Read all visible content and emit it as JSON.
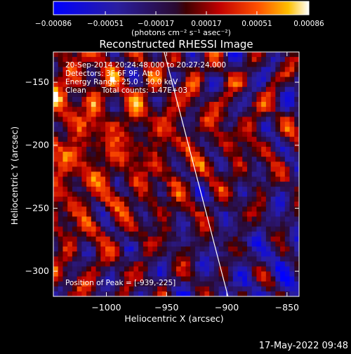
{
  "chart_data": {
    "type": "heatmap",
    "title": "Reconstructed RHESSI Image",
    "xlabel": "Heliocentric X (arcsec)",
    "ylabel": "Heliocentric Y (arcsec)",
    "xlim": [
      -1044,
      -840
    ],
    "ylim": [
      -320,
      -126
    ],
    "xticks": [
      -1000,
      -950,
      -900,
      -850
    ],
    "yticks": [
      -150,
      -200,
      -250,
      -300
    ],
    "xtick_labels": [
      "−1000",
      "−950",
      "−900",
      "−850"
    ],
    "ytick_labels": [
      "−150",
      "−200",
      "−250",
      "−300"
    ],
    "colorbar": {
      "ticks": [
        -0.00086,
        -0.00051,
        -0.00017,
        0.00017,
        0.00051,
        0.00086
      ],
      "tick_labels": [
        "−0.00086",
        "−0.00051",
        "−0.00017",
        "0.00017",
        "0.00051",
        "0.00086"
      ],
      "unit_label": "(photons cm⁻² s⁻¹ asec⁻²)",
      "range": [
        -0.00086,
        0.00086
      ]
    },
    "annotations": {
      "time_range": "20-Sep-2014 20:24:48.000 to 20:27:24.000",
      "detectors": "Detectors: 3F 6F 9F, Att 0",
      "energy_range": "Energy Range: 25.0 - 50.0 keV",
      "clean": "Clean",
      "total_counts": "Total counts: 1.47E+03",
      "peak": "Position of Peak = [-939,-225]"
    },
    "limb_line": {
      "x": [
        -952,
        -899
      ],
      "y": [
        -126,
        -320
      ]
    },
    "grid": false,
    "grid_cols": 52,
    "grid_rows": 49
  },
  "footer": {
    "timestamp": "17-May-2022 09:48"
  },
  "colors": {
    "background": "#000000",
    "axis": "#ffffff"
  }
}
